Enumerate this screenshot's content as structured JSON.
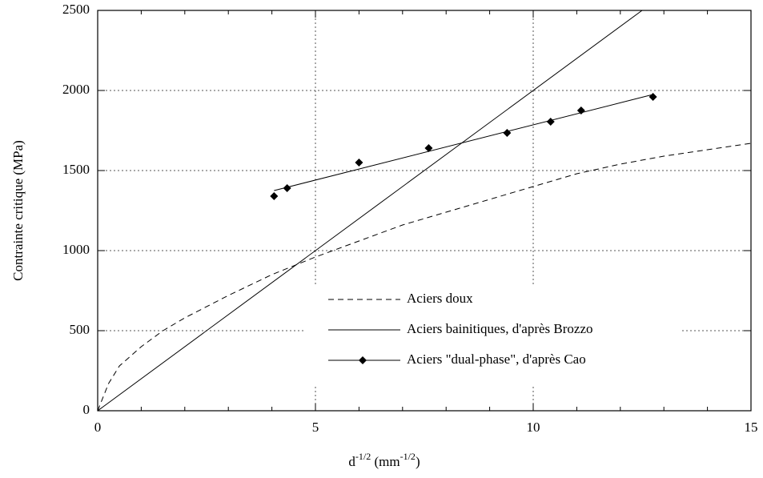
{
  "chart_data": {
    "type": "line",
    "x_label": [
      "d",
      "-1/2",
      " (mm",
      "-1/2",
      ")"
    ],
    "y_label": "Contrainte critique (MPa)",
    "xlim": [
      0,
      15
    ],
    "xticks": [
      0,
      5,
      10,
      15
    ],
    "x_minor_step": 1,
    "ylim": [
      0,
      2500
    ],
    "yticks": [
      0,
      500,
      1000,
      1500,
      2000,
      2500
    ],
    "grid": true,
    "series": [
      {
        "name": "Aciers doux",
        "style": "dashed",
        "color": "#000000",
        "x": [
          0,
          0.25,
          0.5,
          1,
          1.5,
          2,
          3,
          4,
          5,
          6,
          7,
          8,
          9,
          10,
          11,
          12,
          13,
          14,
          15
        ],
        "values": [
          0,
          170,
          280,
          400,
          500,
          580,
          720,
          850,
          960,
          1060,
          1160,
          1240,
          1320,
          1400,
          1480,
          1540,
          1590,
          1630,
          1670
        ]
      },
      {
        "name": "Aciers bainitiques, d'après Brozzo",
        "style": "solid",
        "color": "#000000",
        "x": [
          0,
          12.5
        ],
        "values": [
          0,
          2500
        ]
      },
      {
        "name": "Aciers \"dual-phase\", d'après Cao",
        "style": "markers",
        "color": "#000000",
        "x": [
          4.05,
          4.35,
          6,
          7.6,
          9.4,
          10.4,
          11.1,
          12.75
        ],
        "values": [
          1340,
          1390,
          1550,
          1640,
          1735,
          1805,
          1875,
          1960
        ],
        "fit": {
          "x": [
            4.05,
            12.75
          ],
          "values": [
            1375,
            1975
          ]
        }
      }
    ]
  }
}
